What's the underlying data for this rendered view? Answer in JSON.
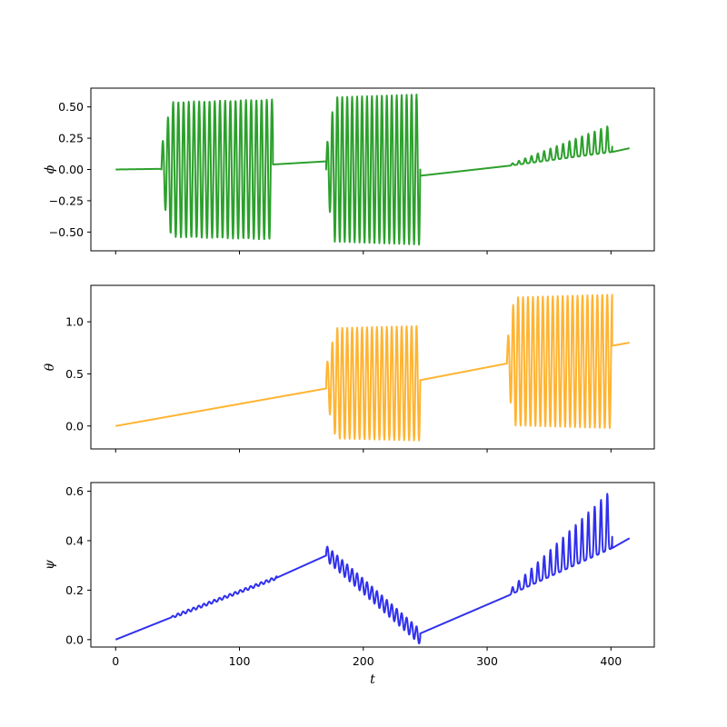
{
  "chart_data": [
    {
      "type": "line",
      "ylabel": "ϕ",
      "xlabel": "",
      "xlim": [
        -20,
        435
      ],
      "ylim": [
        -0.65,
        0.65
      ],
      "x_ticks": [
        0,
        100,
        200,
        300,
        400
      ],
      "x_tick_labels": [
        "",
        "",
        "",
        "",
        ""
      ],
      "y_ticks": [
        -0.5,
        -0.25,
        0.0,
        0.25,
        0.5
      ],
      "y_tick_labels": [
        "−0.50",
        "−0.25",
        "0.00",
        "0.25",
        "0.50"
      ],
      "color": "#2ca02c",
      "segments": [
        {
          "kind": "line",
          "t0": 0,
          "t1": 37,
          "y0": 0.0,
          "y1": 0.005
        },
        {
          "kind": "osc",
          "t0": 37,
          "t1": 127,
          "center": 0.0,
          "amp0": 0.12,
          "amp1": 0.56,
          "rise": 8,
          "period": 4.2,
          "phase": 0,
          "dip": 0
        },
        {
          "kind": "line",
          "t0": 127,
          "t1": 170,
          "y0": 0.04,
          "y1": 0.065
        },
        {
          "kind": "osc",
          "t0": 170,
          "t1": 246,
          "center": 0.0,
          "amp0": 0.09,
          "amp1": 0.6,
          "rise": 7,
          "period": 4.0,
          "phase": 0,
          "dip": 0
        },
        {
          "kind": "line",
          "t0": 246,
          "t1": 318,
          "y0": -0.05,
          "y1": 0.03
        },
        {
          "kind": "pulse",
          "t0": 318,
          "t1": 401,
          "base0": 0.03,
          "base1": 0.14,
          "amp0": 0.01,
          "amp1": 0.22,
          "period": 5.1
        },
        {
          "kind": "line",
          "t0": 401,
          "t1": 415,
          "y0": 0.14,
          "y1": 0.17
        }
      ]
    },
    {
      "type": "line",
      "ylabel": "θ",
      "xlabel": "",
      "xlim": [
        -20,
        435
      ],
      "ylim": [
        -0.22,
        1.35
      ],
      "x_ticks": [
        0,
        100,
        200,
        300,
        400
      ],
      "x_tick_labels": [
        "",
        "",
        "",
        "",
        ""
      ],
      "y_ticks": [
        0.0,
        0.5,
        1.0
      ],
      "y_tick_labels": [
        "0.0",
        "0.5",
        "1.0"
      ],
      "color": "#ffb432",
      "segments": [
        {
          "kind": "line",
          "t0": 0,
          "t1": 170,
          "y0": 0.0,
          "y1": 0.36
        },
        {
          "kind": "osc",
          "t0": 170,
          "t1": 246,
          "center": 0.41,
          "amp0": 0.1,
          "amp1": 0.55,
          "rise": 8,
          "period": 4.0,
          "phase": 0,
          "dip": 0
        },
        {
          "kind": "line",
          "t0": 246,
          "t1": 316,
          "y0": 0.44,
          "y1": 0.6
        },
        {
          "kind": "osc",
          "t0": 316,
          "t1": 401,
          "center": 0.62,
          "amp0": 0.1,
          "amp1": 0.64,
          "rise": 6,
          "period": 4.0,
          "phase": 0,
          "dip": 0
        },
        {
          "kind": "line",
          "t0": 401,
          "t1": 415,
          "y0": 0.77,
          "y1": 0.8
        }
      ]
    },
    {
      "type": "line",
      "ylabel": "ψ",
      "xlabel": "t",
      "xlim": [
        -20,
        435
      ],
      "ylim": [
        -0.03,
        0.635
      ],
      "x_ticks": [
        0,
        100,
        200,
        300,
        400
      ],
      "x_tick_labels": [
        "0",
        "100",
        "200",
        "300",
        "400"
      ],
      "y_ticks": [
        0.0,
        0.2,
        0.4,
        0.6
      ],
      "y_tick_labels": [
        "0.0",
        "0.2",
        "0.4",
        "0.6"
      ],
      "color": "#3030ee",
      "segments": [
        {
          "kind": "line",
          "t0": 0,
          "t1": 45,
          "y0": 0.0,
          "y1": 0.09
        },
        {
          "kind": "osc",
          "t0": 45,
          "t1": 130,
          "center0": 0.09,
          "center1": 0.25,
          "amp0": 0.003,
          "amp1": 0.006,
          "rise": 5,
          "period": 4.2,
          "phase": 0,
          "dip": 0
        },
        {
          "kind": "line",
          "t0": 130,
          "t1": 170,
          "y0": 0.25,
          "y1": 0.34
        },
        {
          "kind": "osc",
          "t0": 170,
          "t1": 246,
          "center0": 0.35,
          "center1": 0.01,
          "amp0": 0.03,
          "amp1": 0.03,
          "rise": 4,
          "period": 4.0,
          "phase": 0,
          "dip": 0
        },
        {
          "kind": "line",
          "t0": 246,
          "t1": 318,
          "y0": 0.025,
          "y1": 0.18
        },
        {
          "kind": "pulse",
          "t0": 318,
          "t1": 401,
          "base0": 0.18,
          "base1": 0.37,
          "amp0": 0.02,
          "amp1": 0.24,
          "period": 5.1
        },
        {
          "kind": "line",
          "t0": 401,
          "t1": 415,
          "y0": 0.37,
          "y1": 0.41
        }
      ]
    }
  ]
}
